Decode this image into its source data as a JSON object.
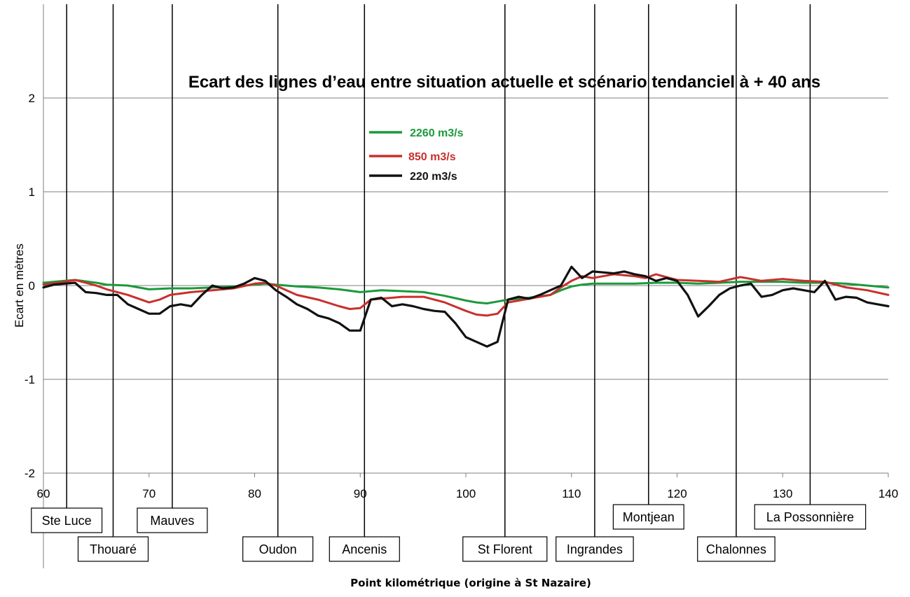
{
  "chart_data": {
    "type": "line",
    "title": "Ecart des lignes d’eau entre situation actuelle et scénario tendanciel à + 40 ans",
    "xlabel": "Point kilométrique  (origine à St Nazaire)",
    "ylabel": "Ecart en mètres",
    "xlim": [
      60,
      140
    ],
    "ylim": [
      -2,
      3
    ],
    "x_ticks": [
      60,
      70,
      80,
      90,
      100,
      110,
      120,
      130,
      140
    ],
    "y_ticks": [
      -2,
      -1,
      0,
      1,
      2
    ],
    "grid": "horizontal",
    "legend_position": "top-center",
    "series": [
      {
        "name": "2260 m3/s",
        "color": "#1a9a3a",
        "x": [
          60,
          62,
          63,
          65,
          66,
          68,
          70,
          72,
          74,
          76,
          78,
          80,
          81,
          82,
          84,
          86,
          88,
          90,
          92,
          94,
          96,
          98,
          100,
          101,
          102,
          103,
          104,
          106,
          108,
          109,
          110,
          111,
          112,
          114,
          116,
          118,
          120,
          122,
          124,
          126,
          128,
          130,
          132,
          134,
          136,
          138,
          140
        ],
        "values": [
          0.03,
          0.05,
          0.06,
          0.03,
          0.01,
          0.0,
          -0.04,
          -0.03,
          -0.03,
          -0.02,
          -0.01,
          0.01,
          0.02,
          0.01,
          -0.01,
          -0.02,
          -0.04,
          -0.07,
          -0.05,
          -0.06,
          -0.07,
          -0.11,
          -0.16,
          -0.18,
          -0.19,
          -0.17,
          -0.15,
          -0.13,
          -0.1,
          -0.05,
          -0.01,
          0.01,
          0.02,
          0.02,
          0.02,
          0.03,
          0.03,
          0.02,
          0.03,
          0.04,
          0.04,
          0.04,
          0.03,
          0.03,
          0.02,
          0.0,
          -0.02
        ]
      },
      {
        "name": "850 m3/s",
        "color": "#c8302c",
        "x": [
          60,
          62,
          63,
          65,
          66,
          68,
          70,
          71,
          72,
          74,
          76,
          78,
          80,
          81,
          82,
          84,
          86,
          88,
          89,
          90,
          91,
          92,
          94,
          96,
          98,
          100,
          101,
          102,
          103,
          104,
          106,
          108,
          109,
          110,
          111,
          112,
          114,
          116,
          117,
          118,
          120,
          122,
          124,
          126,
          128,
          130,
          132,
          134,
          136,
          138,
          140
        ],
        "values": [
          0.01,
          0.04,
          0.06,
          0.0,
          -0.04,
          -0.1,
          -0.18,
          -0.15,
          -0.1,
          -0.07,
          -0.05,
          -0.03,
          0.02,
          0.03,
          0.0,
          -0.1,
          -0.15,
          -0.22,
          -0.25,
          -0.24,
          -0.15,
          -0.14,
          -0.12,
          -0.12,
          -0.18,
          -0.27,
          -0.31,
          -0.32,
          -0.3,
          -0.18,
          -0.14,
          -0.1,
          -0.02,
          0.05,
          0.1,
          0.08,
          0.12,
          0.1,
          0.08,
          0.12,
          0.06,
          0.05,
          0.04,
          0.09,
          0.05,
          0.07,
          0.05,
          0.04,
          -0.02,
          -0.05,
          -0.1
        ]
      },
      {
        "name": "220 m3/s",
        "color": "#111111",
        "x": [
          60,
          61,
          62,
          63,
          64,
          65,
          66,
          67,
          68,
          69,
          70,
          71,
          72,
          73,
          74,
          75,
          76,
          77,
          78,
          79,
          80,
          81,
          82,
          83,
          84,
          85,
          86,
          87,
          88,
          89,
          90,
          91,
          92,
          93,
          94,
          95,
          96,
          97,
          98,
          99,
          100,
          101,
          102,
          103,
          104,
          105,
          106,
          107,
          108,
          109,
          110,
          111,
          112,
          113,
          114,
          115,
          116,
          117,
          118,
          119,
          120,
          121,
          122,
          123,
          124,
          125,
          126,
          127,
          128,
          129,
          130,
          131,
          132,
          133,
          134,
          135,
          136,
          137,
          138,
          139,
          140
        ],
        "values": [
          -0.02,
          0.01,
          0.02,
          0.03,
          -0.07,
          -0.08,
          -0.1,
          -0.1,
          -0.2,
          -0.25,
          -0.3,
          -0.3,
          -0.22,
          -0.2,
          -0.22,
          -0.1,
          0.0,
          -0.03,
          -0.02,
          0.02,
          0.08,
          0.05,
          -0.05,
          -0.12,
          -0.2,
          -0.25,
          -0.32,
          -0.35,
          -0.4,
          -0.48,
          -0.48,
          -0.15,
          -0.13,
          -0.22,
          -0.2,
          -0.22,
          -0.25,
          -0.27,
          -0.28,
          -0.4,
          -0.55,
          -0.6,
          -0.65,
          -0.6,
          -0.15,
          -0.12,
          -0.14,
          -0.1,
          -0.05,
          0.0,
          0.2,
          0.08,
          0.15,
          0.14,
          0.13,
          0.15,
          0.12,
          0.1,
          0.05,
          0.08,
          0.05,
          -0.1,
          -0.33,
          -0.22,
          -0.1,
          -0.03,
          0.0,
          0.02,
          -0.12,
          -0.1,
          -0.05,
          -0.03,
          -0.05,
          -0.07,
          0.05,
          -0.15,
          -0.12,
          -0.13,
          -0.18,
          -0.2,
          -0.22
        ]
      }
    ],
    "locations": [
      {
        "label": "Ste Luce",
        "pk": 62.2,
        "row": 1
      },
      {
        "label": "Thouaré",
        "pk": 66.6,
        "row": 3
      },
      {
        "label": "Mauves",
        "pk": 72.2,
        "row": 1
      },
      {
        "label": "Oudon",
        "pk": 82.2,
        "row": 3
      },
      {
        "label": "Ancenis",
        "pk": 90.4,
        "row": 3
      },
      {
        "label": "St Florent",
        "pk": 103.7,
        "row": 3
      },
      {
        "label": "Ingrandes",
        "pk": 112.2,
        "row": 3
      },
      {
        "label": "Montjean",
        "pk": 117.3,
        "row": 0
      },
      {
        "label": "Chalonnes",
        "pk": 125.6,
        "row": 3
      },
      {
        "label": "La Possonnière",
        "pk": 132.6,
        "row": 0
      }
    ]
  }
}
